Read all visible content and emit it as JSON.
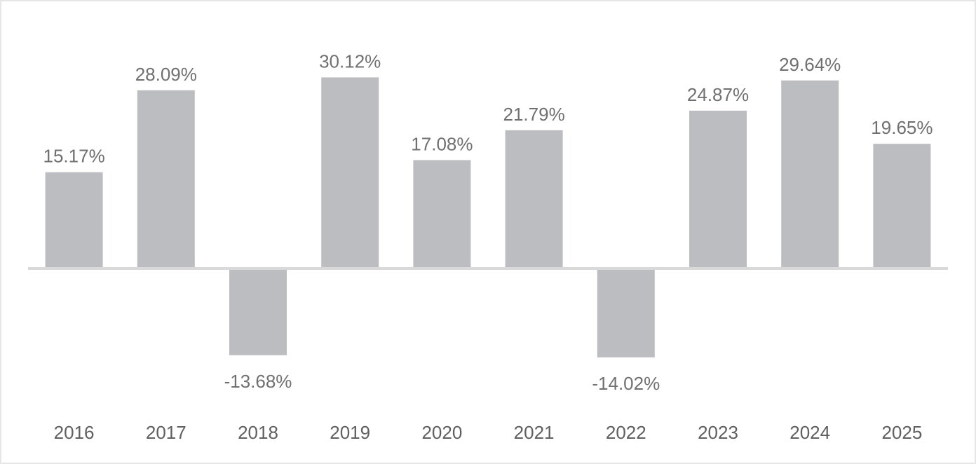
{
  "chart_data": {
    "type": "bar",
    "categories": [
      "2016",
      "2017",
      "2018",
      "2019",
      "2020",
      "2021",
      "2022",
      "2023",
      "2024",
      "2025"
    ],
    "values": [
      15.17,
      28.09,
      -13.68,
      30.12,
      17.08,
      21.79,
      -14.02,
      24.87,
      29.64,
      19.65
    ],
    "value_labels": [
      "15.17%",
      "28.09%",
      "-13.68%",
      "30.12%",
      "17.08%",
      "21.79%",
      "-14.02%",
      "24.87%",
      "29.64%",
      "19.65%"
    ],
    "title": "",
    "xlabel": "",
    "ylabel": "",
    "ylim": [
      -22,
      38
    ],
    "grid": false,
    "legend": "none",
    "colors": {
      "bar": "#bcbdc0",
      "axis": "#d9d9d9",
      "label": "#707070",
      "frame": "#e6e6e6"
    }
  }
}
